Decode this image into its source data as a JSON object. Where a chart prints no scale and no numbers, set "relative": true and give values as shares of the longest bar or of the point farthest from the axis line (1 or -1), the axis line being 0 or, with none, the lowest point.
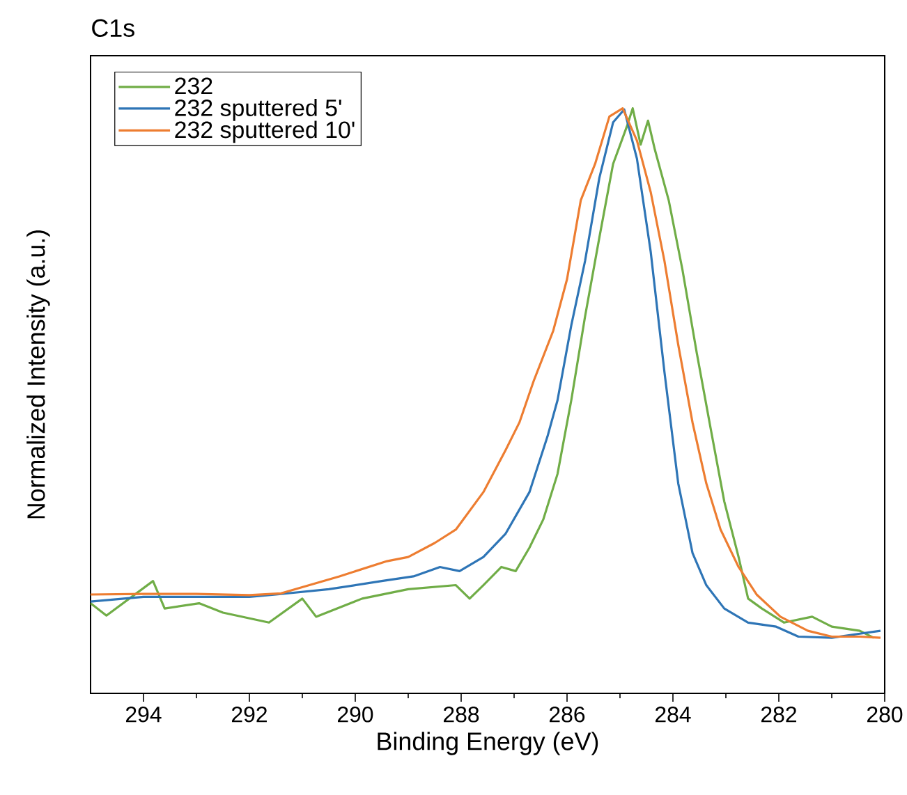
{
  "chart_data": {
    "type": "line",
    "title": "C1s",
    "xlabel": "Binding Energy (eV)",
    "ylabel": "Normalized Intensity (a.u.)",
    "relative": true,
    "xlim": [
      295,
      280
    ],
    "xticks": [
      {
        "value": 293,
        "label": null
      },
      {
        "value": 291,
        "label": null
      },
      {
        "value": 289,
        "label": null
      },
      {
        "value": 287,
        "label": null
      },
      {
        "value": 285,
        "label": null
      },
      {
        "value": 283,
        "label": null
      },
      {
        "value": 281,
        "label": null
      },
      294,
      292,
      290,
      288,
      286,
      284,
      282,
      280
    ],
    "legend": "top left",
    "marker": "none",
    "line_style": "solid",
    "series": [
      {
        "name": "232",
        "color": "#70ad47",
        "x": [
          295,
          294.7,
          293.82,
          293.6,
          292.95,
          292.5,
          291.63,
          291.0,
          290.74,
          289.87,
          289.0,
          288.1,
          287.84,
          287.58,
          287.24,
          286.97,
          286.71,
          286.45,
          286.18,
          285.92,
          285.66,
          285.39,
          285.13,
          284.87,
          284.76,
          284.61,
          284.47,
          284.34,
          284.08,
          283.82,
          283.55,
          283.29,
          283.03,
          282.76,
          282.58,
          282.32,
          281.9,
          281.37,
          281.0,
          280.47,
          280.21
        ],
        "values": [
          0.154,
          0.133,
          0.192,
          0.145,
          0.154,
          0.138,
          0.121,
          0.162,
          0.131,
          0.162,
          0.178,
          0.185,
          0.162,
          0.185,
          0.216,
          0.209,
          0.249,
          0.297,
          0.375,
          0.501,
          0.644,
          0.779,
          0.905,
          0.969,
          1.0,
          0.938,
          0.979,
          0.929,
          0.843,
          0.724,
          0.582,
          0.454,
          0.328,
          0.233,
          0.162,
          0.145,
          0.121,
          0.131,
          0.114,
          0.107,
          0.095
        ]
      },
      {
        "name": "232 sputtered 5'",
        "color": "#2e75b6",
        "x": [
          295,
          294,
          292,
          291.5,
          290.5,
          289.5,
          288.9,
          288.4,
          288.03,
          287.58,
          287.16,
          286.71,
          286.37,
          286.18,
          285.92,
          285.66,
          285.39,
          285.13,
          284.92,
          284.68,
          284.42,
          284.16,
          283.9,
          283.63,
          283.37,
          283.03,
          282.58,
          282.05,
          281.63,
          281.0,
          280.47,
          280.08
        ],
        "values": [
          0.157,
          0.165,
          0.165,
          0.169,
          0.178,
          0.192,
          0.2,
          0.216,
          0.209,
          0.233,
          0.273,
          0.344,
          0.439,
          0.501,
          0.629,
          0.739,
          0.881,
          0.976,
          0.998,
          0.914,
          0.755,
          0.549,
          0.359,
          0.24,
          0.185,
          0.145,
          0.121,
          0.114,
          0.097,
          0.095,
          0.102,
          0.107
        ]
      },
      {
        "name": "232 sputtered 10'",
        "color": "#ed7d31",
        "x": [
          295,
          294,
          293,
          292,
          291.4,
          290.3,
          289.4,
          289.0,
          288.5,
          288.1,
          287.58,
          287.16,
          286.9,
          286.63,
          286.26,
          286.0,
          285.74,
          285.47,
          285.2,
          284.95,
          284.68,
          284.42,
          284.16,
          283.9,
          283.63,
          283.37,
          283.1,
          282.76,
          282.42,
          281.97,
          281.45,
          281.0,
          280.47,
          280.08
        ],
        "values": [
          0.169,
          0.17,
          0.17,
          0.168,
          0.171,
          0.2,
          0.226,
          0.233,
          0.257,
          0.28,
          0.344,
          0.416,
          0.463,
          0.534,
          0.62,
          0.708,
          0.843,
          0.905,
          0.986,
          1.0,
          0.945,
          0.857,
          0.739,
          0.596,
          0.463,
          0.359,
          0.28,
          0.216,
          0.169,
          0.131,
          0.107,
          0.097,
          0.097,
          0.095
        ]
      }
    ]
  }
}
